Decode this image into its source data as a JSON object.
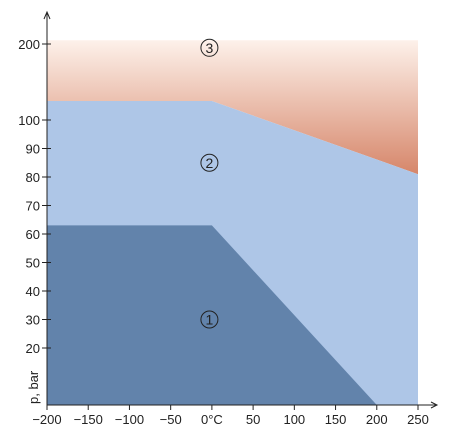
{
  "chart_data": {
    "type": "area",
    "title": "",
    "xlabel": "",
    "ylabel": "p, bar",
    "x_unit_label": "°C",
    "x_ticks": [
      -200,
      -150,
      -100,
      -50,
      0,
      50,
      100,
      150,
      200,
      250
    ],
    "x_tick_labels": [
      "−200",
      "−150",
      "−100",
      "−50",
      "0°C",
      "50",
      "100",
      "150",
      "200",
      "250"
    ],
    "y_ticks": [
      20,
      30,
      40,
      50,
      60,
      70,
      80,
      90,
      100,
      200
    ],
    "y_tick_labels": [
      "20",
      "30",
      "40",
      "50",
      "60",
      "70",
      "80",
      "90",
      "100",
      "200"
    ],
    "y_scale": "linear (with a break between 100 and 200)",
    "xlim": [
      -200,
      250
    ],
    "grid": false,
    "regions": [
      {
        "label": "1",
        "color": "#6283ab",
        "label_at": [
          -3,
          30
        ],
        "boundary": [
          [
            -200,
            0
          ],
          [
            -200,
            63
          ],
          [
            0,
            63
          ],
          [
            200,
            0
          ]
        ]
      },
      {
        "label": "2",
        "color": "#aec6e7",
        "label_at": [
          -3,
          85
        ],
        "boundary": [
          [
            -200,
            0
          ],
          [
            -200,
            125
          ],
          [
            0,
            125
          ],
          [
            250,
            81
          ],
          [
            250,
            0
          ]
        ]
      },
      {
        "label": "3",
        "color_top": "#fdf1ea",
        "color_bottom": "#d6866a",
        "label_at": [
          -3,
          195
        ],
        "boundary": [
          [
            -200,
            125
          ],
          [
            -200,
            205
          ],
          [
            250,
            205
          ],
          [
            250,
            81
          ],
          [
            0,
            125
          ]
        ]
      }
    ]
  }
}
